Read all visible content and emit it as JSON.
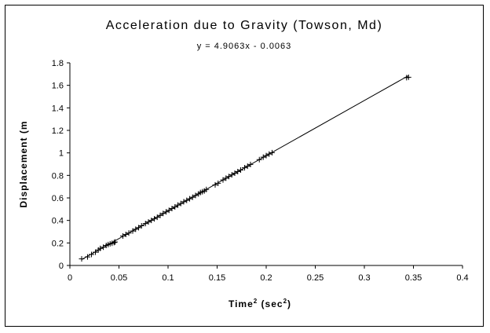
{
  "chart_data": {
    "type": "scatter",
    "title": "Acceleration due to Gravity (Towson, Md)",
    "equation": "y = 4.9063x - 0.0063",
    "xlabel": {
      "main": "Time",
      "main_sup": "2",
      "unit_open": " (sec",
      "unit_sup": "2",
      "unit_close": ")"
    },
    "ylabel": "Displacement (m",
    "xlim": [
      0,
      0.4
    ],
    "ylim": [
      0,
      1.8
    ],
    "xticks": [
      "0",
      "0.05",
      "0.1",
      "0.15",
      "0.2",
      "0.25",
      "0.3",
      "0.35",
      "0.4"
    ],
    "yticks": [
      "0",
      "0.2",
      "0.4",
      "0.6",
      "0.8",
      "1",
      "1.2",
      "1.4",
      "1.6",
      "1.8"
    ],
    "grid": false,
    "legend": "none",
    "marker": "plus",
    "trendline": {
      "slope": 4.9063,
      "intercept": -0.0063,
      "x_range": [
        0.012,
        0.345
      ]
    },
    "series": [
      {
        "points": [
          [
            0.012,
            0.058
          ],
          [
            0.018,
            0.076
          ],
          [
            0.022,
            0.098
          ],
          [
            0.026,
            0.118
          ],
          [
            0.029,
            0.138
          ],
          [
            0.031,
            0.152
          ],
          [
            0.034,
            0.162
          ],
          [
            0.037,
            0.178
          ],
          [
            0.039,
            0.186
          ],
          [
            0.041,
            0.193
          ],
          [
            0.043,
            0.197
          ],
          [
            0.045,
            0.203
          ],
          [
            0.046,
            0.208
          ],
          [
            0.054,
            0.262
          ],
          [
            0.057,
            0.276
          ],
          [
            0.06,
            0.288
          ],
          [
            0.064,
            0.306
          ],
          [
            0.067,
            0.322
          ],
          [
            0.07,
            0.336
          ],
          [
            0.073,
            0.352
          ],
          [
            0.077,
            0.372
          ],
          [
            0.08,
            0.386
          ],
          [
            0.083,
            0.4
          ],
          [
            0.086,
            0.414
          ],
          [
            0.089,
            0.428
          ],
          [
            0.092,
            0.445
          ],
          [
            0.095,
            0.462
          ],
          [
            0.098,
            0.476
          ],
          [
            0.101,
            0.49
          ],
          [
            0.104,
            0.506
          ],
          [
            0.107,
            0.52
          ],
          [
            0.11,
            0.536
          ],
          [
            0.113,
            0.55
          ],
          [
            0.116,
            0.566
          ],
          [
            0.119,
            0.578
          ],
          [
            0.122,
            0.592
          ],
          [
            0.125,
            0.606
          ],
          [
            0.128,
            0.622
          ],
          [
            0.131,
            0.636
          ],
          [
            0.133,
            0.648
          ],
          [
            0.135,
            0.655
          ],
          [
            0.137,
            0.662
          ],
          [
            0.139,
            0.675
          ],
          [
            0.148,
            0.716
          ],
          [
            0.151,
            0.73
          ],
          [
            0.156,
            0.76
          ],
          [
            0.159,
            0.775
          ],
          [
            0.162,
            0.79
          ],
          [
            0.165,
            0.805
          ],
          [
            0.168,
            0.82
          ],
          [
            0.171,
            0.834
          ],
          [
            0.174,
            0.848
          ],
          [
            0.178,
            0.868
          ],
          [
            0.181,
            0.882
          ],
          [
            0.184,
            0.897
          ],
          [
            0.193,
            0.94
          ],
          [
            0.197,
            0.962
          ],
          [
            0.2,
            0.976
          ],
          [
            0.203,
            0.99
          ],
          [
            0.206,
            1.002
          ],
          [
            0.343,
            1.668
          ],
          [
            0.345,
            1.672
          ]
        ]
      }
    ]
  }
}
